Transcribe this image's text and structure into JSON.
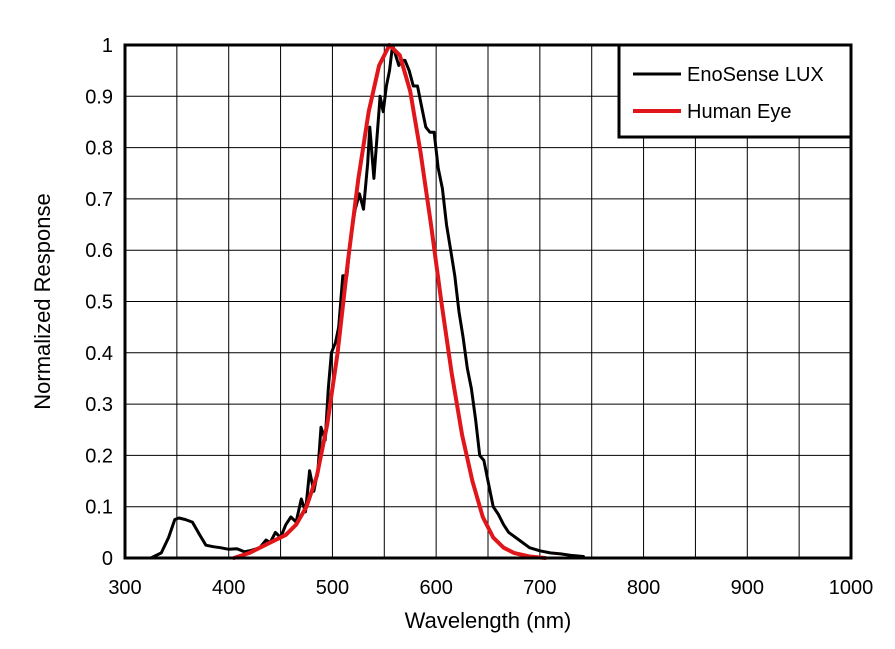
{
  "chart_data": {
    "type": "line",
    "title": "",
    "xlabel": "Wavelength (nm)",
    "ylabel": "Normalized Response",
    "xlim": [
      300,
      1000
    ],
    "ylim": [
      0,
      1
    ],
    "x_ticks": [
      300,
      400,
      500,
      600,
      700,
      800,
      900,
      1000
    ],
    "y_ticks": [
      0,
      0.1,
      0.2,
      0.3,
      0.4,
      0.5,
      0.6,
      0.7,
      0.8,
      0.9,
      1
    ],
    "x_tick_labels": [
      "300",
      "400",
      "500",
      "600",
      "700",
      "800",
      "900",
      "1000"
    ],
    "y_tick_labels": [
      "0",
      "0.1",
      "0.2",
      "0.3",
      "0.4",
      "0.5",
      "0.6",
      "0.7",
      "0.8",
      "0.9",
      "1"
    ],
    "grid": true,
    "minor_x_grid_step": 50,
    "legend_position": "top-right",
    "series": [
      {
        "name": "EnoSense LUX",
        "color": "#000000",
        "points": [
          [
            325,
            0.0
          ],
          [
            335,
            0.01
          ],
          [
            342,
            0.04
          ],
          [
            348,
            0.075
          ],
          [
            352,
            0.078
          ],
          [
            358,
            0.075
          ],
          [
            365,
            0.07
          ],
          [
            372,
            0.045
          ],
          [
            378,
            0.025
          ],
          [
            385,
            0.022
          ],
          [
            392,
            0.02
          ],
          [
            400,
            0.017
          ],
          [
            408,
            0.018
          ],
          [
            415,
            0.012
          ],
          [
            422,
            0.015
          ],
          [
            430,
            0.02
          ],
          [
            436,
            0.035
          ],
          [
            440,
            0.03
          ],
          [
            445,
            0.05
          ],
          [
            450,
            0.04
          ],
          [
            455,
            0.065
          ],
          [
            460,
            0.08
          ],
          [
            465,
            0.07
          ],
          [
            470,
            0.115
          ],
          [
            474,
            0.09
          ],
          [
            478,
            0.17
          ],
          [
            482,
            0.13
          ],
          [
            486,
            0.17
          ],
          [
            489,
            0.255
          ],
          [
            493,
            0.23
          ],
          [
            496,
            0.33
          ],
          [
            499,
            0.4
          ],
          [
            503,
            0.42
          ],
          [
            506,
            0.45
          ],
          [
            510,
            0.55
          ],
          [
            514,
            0.55
          ],
          [
            518,
            0.63
          ],
          [
            522,
            0.68
          ],
          [
            526,
            0.71
          ],
          [
            530,
            0.68
          ],
          [
            534,
            0.77
          ],
          [
            536,
            0.84
          ],
          [
            540,
            0.74
          ],
          [
            543,
            0.82
          ],
          [
            546,
            0.9
          ],
          [
            549,
            0.87
          ],
          [
            552,
            0.92
          ],
          [
            555,
            0.95
          ],
          [
            558,
            1.0
          ],
          [
            561,
            0.98
          ],
          [
            564,
            0.96
          ],
          [
            567,
            0.97
          ],
          [
            570,
            0.97
          ],
          [
            574,
            0.95
          ],
          [
            578,
            0.92
          ],
          [
            582,
            0.92
          ],
          [
            586,
            0.88
          ],
          [
            590,
            0.84
          ],
          [
            594,
            0.83
          ],
          [
            598,
            0.83
          ],
          [
            602,
            0.76
          ],
          [
            606,
            0.72
          ],
          [
            610,
            0.65
          ],
          [
            614,
            0.6
          ],
          [
            618,
            0.55
          ],
          [
            622,
            0.48
          ],
          [
            626,
            0.43
          ],
          [
            630,
            0.37
          ],
          [
            634,
            0.33
          ],
          [
            638,
            0.27
          ],
          [
            642,
            0.2
          ],
          [
            646,
            0.19
          ],
          [
            650,
            0.15
          ],
          [
            655,
            0.1
          ],
          [
            660,
            0.085
          ],
          [
            665,
            0.065
          ],
          [
            670,
            0.05
          ],
          [
            680,
            0.035
          ],
          [
            690,
            0.02
          ],
          [
            700,
            0.014
          ],
          [
            710,
            0.01
          ],
          [
            720,
            0.008
          ],
          [
            730,
            0.005
          ],
          [
            742,
            0.003
          ]
        ]
      },
      {
        "name": "Human Eye",
        "color": "#e0161a",
        "points": [
          [
            405,
            0.0
          ],
          [
            420,
            0.01
          ],
          [
            440,
            0.03
          ],
          [
            455,
            0.045
          ],
          [
            465,
            0.065
          ],
          [
            475,
            0.1
          ],
          [
            485,
            0.16
          ],
          [
            495,
            0.26
          ],
          [
            505,
            0.4
          ],
          [
            515,
            0.58
          ],
          [
            525,
            0.74
          ],
          [
            535,
            0.87
          ],
          [
            545,
            0.96
          ],
          [
            555,
            1.0
          ],
          [
            565,
            0.98
          ],
          [
            575,
            0.91
          ],
          [
            585,
            0.79
          ],
          [
            595,
            0.65
          ],
          [
            605,
            0.5
          ],
          [
            615,
            0.36
          ],
          [
            625,
            0.24
          ],
          [
            635,
            0.15
          ],
          [
            645,
            0.08
          ],
          [
            655,
            0.04
          ],
          [
            665,
            0.02
          ],
          [
            675,
            0.01
          ],
          [
            690,
            0.003
          ],
          [
            705,
            0.0
          ]
        ]
      }
    ]
  }
}
